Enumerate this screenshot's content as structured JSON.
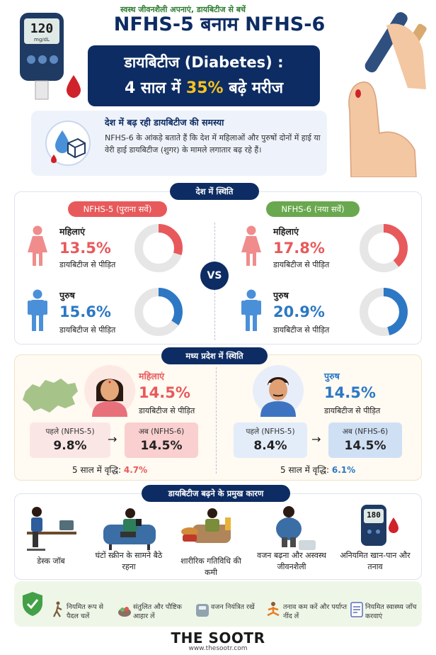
{
  "header": {
    "title": "NFHS-5 बनाम NFHS-6",
    "banner_line1": "डायबिटीज (Diabetes) :",
    "banner_line2_pre": "4 साल में ",
    "banner_line2_hl": "35%",
    "banner_line2_post": " बढ़े मरीज",
    "meter_reading": "120",
    "meter_unit": "mg/dL",
    "highlight_color": "#f7c21d",
    "accent_color": "#0d2c63"
  },
  "intro": {
    "heading": "देश में बढ़ रही डायबिटीज की समस्या",
    "text": "NFHS-6 के आंकड़े बताते हैं कि देश में महिलाओं और पुरुषों दोनों में हाई या वेरी हाई डायबिटीज (शुगर) के मामले लगातार बढ़ रहे हैं।"
  },
  "country": {
    "section_title": "देश में स्थिति",
    "vs": "VS",
    "nfhs5": {
      "tag": "NFHS-5 (पुराना सर्वे)",
      "women": {
        "label": "महिलाएं",
        "pct": "13.5%",
        "value": 13.5,
        "sub": "डायबिटीज से पीड़ित"
      },
      "men": {
        "label": "पुरुष",
        "pct": "15.6%",
        "value": 15.6,
        "sub": "डायबिटीज से पीड़ित"
      }
    },
    "nfhs6": {
      "tag": "NFHS-6 (नया सर्वे)",
      "women": {
        "label": "महिलाएं",
        "pct": "17.8%",
        "value": 17.8,
        "sub": "डायबिटीज से पीड़ित"
      },
      "men": {
        "label": "पुरुष",
        "pct": "20.9%",
        "value": 20.9,
        "sub": "डायबिटीज से पीड़ित"
      }
    },
    "colors": {
      "women": "#e8595b",
      "men": "#2c78c4",
      "nfhs5_tag": "#e8595b",
      "nfhs6_tag": "#6aa84f"
    }
  },
  "mp": {
    "section_title": "मध्य प्रदेश में स्थिति",
    "women": {
      "label": "महिलाएं",
      "pct": "14.5%",
      "sub": "डायबिटीज से पीड़ित",
      "before_label": "पहले (NFHS-5)",
      "before_value": "9.8%",
      "after_label": "अब (NFHS-6)",
      "after_value": "14.5%",
      "growth_label": "5 साल में वृद्धि: ",
      "growth_value": "4.7%"
    },
    "men": {
      "label": "पुरुष",
      "pct": "14.5%",
      "sub": "डायबिटीज से पीड़ित",
      "before_label": "पहले (NFHS-5)",
      "before_value": "8.4%",
      "after_label": "अब (NFHS-6)",
      "after_value": "14.5%",
      "growth_label": "5 साल में वृद्धि: ",
      "growth_value": "6.1%"
    },
    "arrow": "→"
  },
  "causes": {
    "section_title": "डायबिटीज बढ़ने के प्रमुख कारण",
    "items": [
      {
        "label": "डेस्क जॉब",
        "icon": "desk-job-icon"
      },
      {
        "label": "घंटों स्क्रीन के सामने बैठे रहना",
        "icon": "screen-time-icon"
      },
      {
        "label": "शारीरिक गतिविधि की कमी",
        "icon": "inactivity-icon"
      },
      {
        "label": "वजन बढ़ना और अस्वस्थ जीवनशैली",
        "icon": "weight-gain-icon"
      },
      {
        "label": "अनियमित खान-पान और तनाव",
        "icon": "glucometer-icon"
      }
    ],
    "glucometer_reading": "180"
  },
  "tips": {
    "heading": "स्वस्थ जीवनशैली अपनाएं, डायबिटीज से बचें",
    "items": [
      {
        "label": "नियमित रूप से पैदल चलें",
        "icon": "walking-icon"
      },
      {
        "label": "संतुलित और पौष्टिक आहार लें",
        "icon": "food-icon"
      },
      {
        "label": "वजन नियंत्रित रखें",
        "icon": "weighing-scale-icon"
      },
      {
        "label": "तनाव कम करें और पर्याप्त नींद लें",
        "icon": "meditation-icon"
      },
      {
        "label": "नियमित स्वास्थ्य जाँच करवाएं",
        "icon": "checkup-icon"
      }
    ]
  },
  "footer": {
    "brand": "THE SOOTR",
    "url": "www.thesootr.com"
  }
}
